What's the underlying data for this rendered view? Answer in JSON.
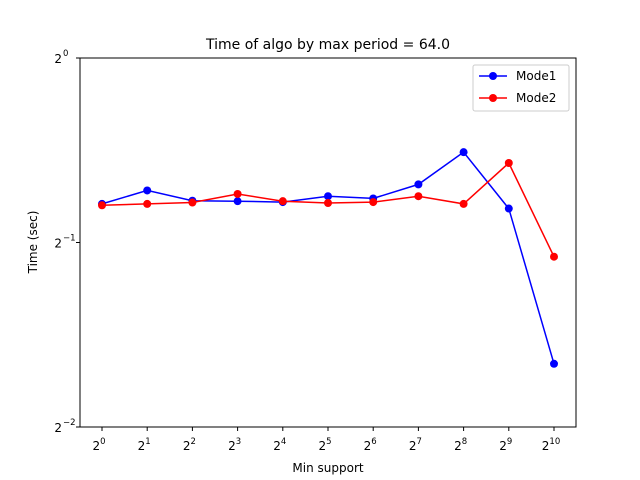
{
  "chart_data": {
    "type": "line",
    "title": "Time of algo by max period = 64.0",
    "xlabel": "Min support",
    "ylabel": "Time (sec)",
    "x_scale": "log2",
    "y_scale": "log2",
    "x": [
      1,
      2,
      4,
      8,
      16,
      32,
      64,
      128,
      256,
      512,
      1024
    ],
    "x_tick_labels": [
      {
        "base": "2",
        "exp": "0"
      },
      {
        "base": "2",
        "exp": "1"
      },
      {
        "base": "2",
        "exp": "2"
      },
      {
        "base": "2",
        "exp": "3"
      },
      {
        "base": "2",
        "exp": "4"
      },
      {
        "base": "2",
        "exp": "5"
      },
      {
        "base": "2",
        "exp": "6"
      },
      {
        "base": "2",
        "exp": "7"
      },
      {
        "base": "2",
        "exp": "8"
      },
      {
        "base": "2",
        "exp": "9"
      },
      {
        "base": "2",
        "exp": "10"
      }
    ],
    "y_ticks": [
      {
        "value": 1,
        "base": "2",
        "exp": "0"
      },
      {
        "value": 0.5,
        "base": "2",
        "exp": "−1"
      },
      {
        "value": 0.25,
        "base": "2",
        "exp": "−2"
      }
    ],
    "ylim": [
      0.25,
      1
    ],
    "grid": false,
    "legend_position": "top-right",
    "series": [
      {
        "name": "Mode1",
        "color": "#0000ff",
        "marker": "circle",
        "values": [
          0.578,
          0.608,
          0.585,
          0.584,
          0.582,
          0.595,
          0.59,
          0.622,
          0.702,
          0.568,
          0.317
        ]
      },
      {
        "name": "Mode2",
        "color": "#ff0000",
        "marker": "circle",
        "values": [
          0.575,
          0.578,
          0.581,
          0.6,
          0.584,
          0.58,
          0.582,
          0.595,
          0.578,
          0.674,
          0.474
        ]
      }
    ]
  }
}
